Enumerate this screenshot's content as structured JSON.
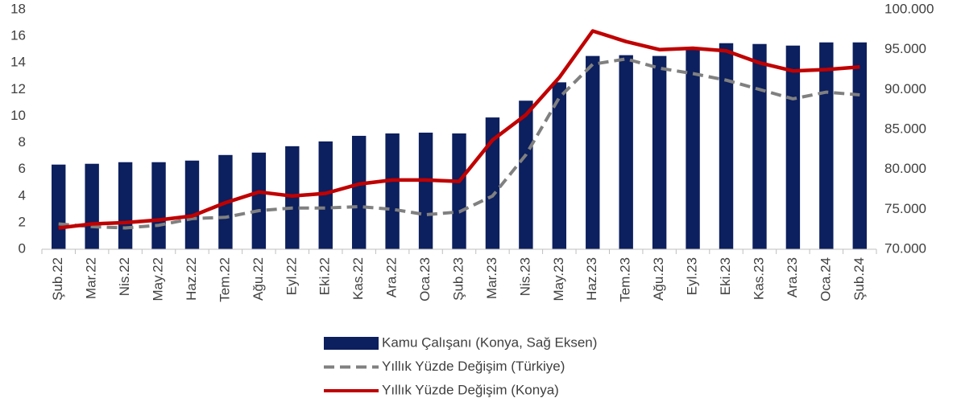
{
  "chart_data": {
    "type": "bar",
    "categories": [
      "Şub.22",
      "Mar.22",
      "Nis.22",
      "May.22",
      "Haz.22",
      "Tem.22",
      "Ağu.22",
      "Eyl.22",
      "Eki.22",
      "Kas.22",
      "Ara.22",
      "Oca.23",
      "Şub.23",
      "Mar.23",
      "Nis.23",
      "May.23",
      "Haz.23",
      "Tem.23",
      "Ağu.23",
      "Eyl.23",
      "Eki.23",
      "Kas.23",
      "Ara.23",
      "Oca.24",
      "Şub.24"
    ],
    "series": [
      {
        "name": "Kamu Çalışanı (Konya, Sağ Eksen)",
        "type": "bar",
        "axis": "y2",
        "color": "#0c1f5e",
        "values": [
          80600,
          80700,
          80900,
          80900,
          81100,
          81800,
          82100,
          82900,
          83500,
          84200,
          84500,
          84600,
          84500,
          86500,
          88600,
          90900,
          94200,
          94300,
          94200,
          95200,
          95800,
          95700,
          95500,
          95900,
          95900
        ]
      },
      {
        "name": "Yıllık Yüzde Değişim (Türkiye)",
        "type": "line",
        "linestyle": "dashed",
        "color": "#808080",
        "values": [
          1.9,
          1.7,
          1.6,
          1.8,
          2.3,
          2.4,
          2.9,
          3.1,
          3.1,
          3.2,
          3.0,
          2.6,
          2.8,
          4.0,
          7.1,
          11.4,
          13.9,
          14.3,
          13.6,
          13.2,
          12.7,
          12.0,
          11.3,
          11.8,
          11.6
        ]
      },
      {
        "name": "Yıllık Yüzde Değişim (Konya)",
        "type": "line",
        "linestyle": "solid",
        "color": "#c00000",
        "values": [
          1.6,
          1.9,
          2.0,
          2.2,
          2.5,
          3.5,
          4.3,
          4.0,
          4.2,
          4.9,
          5.2,
          5.2,
          5.1,
          8.2,
          10.1,
          12.9,
          16.4,
          15.6,
          15.0,
          15.1,
          14.9,
          14.0,
          13.4,
          13.5,
          13.7
        ]
      }
    ],
    "ylim": [
      0,
      18
    ],
    "yticks": [
      0,
      2,
      4,
      6,
      8,
      10,
      12,
      14,
      16,
      18
    ],
    "y2lim": [
      70000,
      100000
    ],
    "y2ticks": [
      {
        "value": 70000,
        "label": "70.000"
      },
      {
        "value": 75000,
        "label": "75.000"
      },
      {
        "value": 80000,
        "label": "80.000"
      },
      {
        "value": 85000,
        "label": "85.000"
      },
      {
        "value": 90000,
        "label": "90.000"
      },
      {
        "value": 95000,
        "label": "95.000"
      },
      {
        "value": 100000,
        "label": "100.000"
      }
    ],
    "grid": false,
    "legend": "bottom"
  }
}
